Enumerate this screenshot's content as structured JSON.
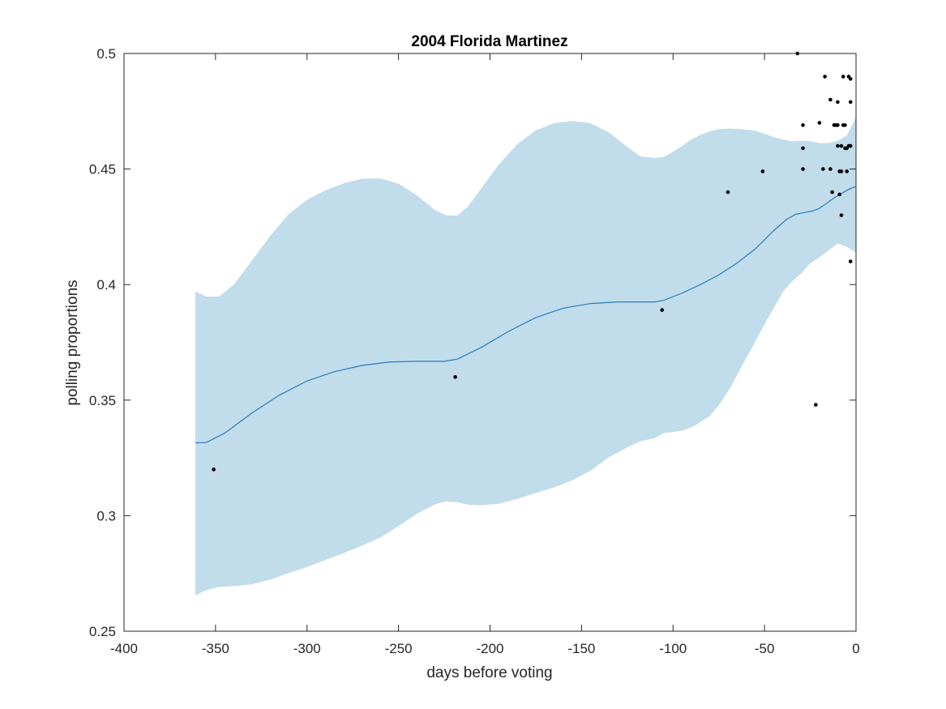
{
  "chart_data": {
    "type": "line",
    "title": "2004 Florida Martinez",
    "xlabel": "days before voting",
    "ylabel": "polling proportions",
    "xlim": [
      -400,
      0
    ],
    "ylim": [
      0.25,
      0.5
    ],
    "xticks": [
      -400,
      -350,
      -300,
      -250,
      -200,
      -150,
      -100,
      -50,
      0
    ],
    "xtick_labels": [
      "-400",
      "-350",
      "-300",
      "-250",
      "-200",
      "-150",
      "-100",
      "-50",
      "0"
    ],
    "yticks": [
      0.25,
      0.3,
      0.35,
      0.4,
      0.45,
      0.5
    ],
    "ytick_labels": [
      "0.25",
      "0.3",
      "0.35",
      "0.4",
      "0.45",
      "0.5"
    ],
    "grid": false,
    "colors": {
      "band": "#c1dcea",
      "line": "#2a7bbf",
      "points": "#000000",
      "axes": "#262626"
    },
    "mean_curve": {
      "x": [
        -361,
        -355,
        -345,
        -330,
        -315,
        -300,
        -285,
        -270,
        -255,
        -240,
        -225,
        -218,
        -205,
        -190,
        -175,
        -160,
        -145,
        -130,
        -120,
        -110,
        -105,
        -95,
        -85,
        -75,
        -65,
        -55,
        -45,
        -38,
        -33,
        -28,
        -24,
        -20,
        -16,
        -12,
        -8,
        -4,
        0
      ],
      "y": [
        0.3315,
        0.3317,
        0.3357,
        0.3445,
        0.3522,
        0.3583,
        0.3623,
        0.365,
        0.3665,
        0.3668,
        0.3668,
        0.3677,
        0.3727,
        0.3797,
        0.3857,
        0.3898,
        0.3918,
        0.3925,
        0.3925,
        0.3925,
        0.3932,
        0.3963,
        0.4,
        0.4042,
        0.4093,
        0.4155,
        0.4233,
        0.4282,
        0.4304,
        0.4312,
        0.4318,
        0.433,
        0.4352,
        0.4375,
        0.4394,
        0.4412,
        0.4425
      ]
    },
    "confidence_band": {
      "x": [
        -361,
        -355,
        -348,
        -340,
        -330,
        -320,
        -310,
        -300,
        -290,
        -280,
        -270,
        -260,
        -250,
        -240,
        -230,
        -224,
        -218,
        -212,
        -205,
        -195,
        -185,
        -175,
        -165,
        -155,
        -145,
        -135,
        -125,
        -118,
        -110,
        -105,
        -100,
        -95,
        -90,
        -85,
        -80,
        -75,
        -70,
        -65,
        -60,
        -55,
        -50,
        -45,
        -40,
        -35,
        -30,
        -25,
        -20,
        -15,
        -10,
        -5,
        0
      ],
      "upper": [
        0.397,
        0.3948,
        0.3948,
        0.4,
        0.4105,
        0.4212,
        0.4305,
        0.4367,
        0.4408,
        0.4438,
        0.4458,
        0.4459,
        0.4437,
        0.4386,
        0.4322,
        0.43,
        0.4298,
        0.4338,
        0.4414,
        0.4522,
        0.4608,
        0.4668,
        0.4698,
        0.4708,
        0.4698,
        0.4658,
        0.4596,
        0.4555,
        0.4548,
        0.4552,
        0.4575,
        0.46,
        0.4628,
        0.4648,
        0.4663,
        0.4672,
        0.4675,
        0.4674,
        0.4671,
        0.4665,
        0.4653,
        0.4638,
        0.4628,
        0.462,
        0.4622,
        0.462,
        0.4612,
        0.4612,
        0.4622,
        0.4645,
        0.4725
      ],
      "lower": [
        0.2655,
        0.2678,
        0.2692,
        0.2695,
        0.2703,
        0.2723,
        0.2752,
        0.2778,
        0.2808,
        0.2838,
        0.287,
        0.2905,
        0.2955,
        0.3008,
        0.3049,
        0.3062,
        0.3058,
        0.3048,
        0.3045,
        0.3052,
        0.3073,
        0.3098,
        0.3122,
        0.3153,
        0.3195,
        0.3253,
        0.3295,
        0.3322,
        0.3335,
        0.3358,
        0.3362,
        0.3368,
        0.3382,
        0.3405,
        0.3432,
        0.3477,
        0.3537,
        0.3608,
        0.3683,
        0.3754,
        0.3828,
        0.3898,
        0.3968,
        0.4014,
        0.4048,
        0.4092,
        0.4118,
        0.4148,
        0.4178,
        0.4163,
        0.4138
      ]
    },
    "points": [
      {
        "x": -351,
        "y": 0.32
      },
      {
        "x": -219,
        "y": 0.36
      },
      {
        "x": -106,
        "y": 0.389
      },
      {
        "x": -70,
        "y": 0.44
      },
      {
        "x": -51,
        "y": 0.449
      },
      {
        "x": -32,
        "y": 0.5
      },
      {
        "x": -29,
        "y": 0.469
      },
      {
        "x": -29,
        "y": 0.459
      },
      {
        "x": -29,
        "y": 0.45
      },
      {
        "x": -22,
        "y": 0.348
      },
      {
        "x": -20,
        "y": 0.47
      },
      {
        "x": -18,
        "y": 0.45
      },
      {
        "x": -17,
        "y": 0.49
      },
      {
        "x": -14,
        "y": 0.48
      },
      {
        "x": -14,
        "y": 0.45
      },
      {
        "x": -13,
        "y": 0.44
      },
      {
        "x": -12,
        "y": 0.469
      },
      {
        "x": -11,
        "y": 0.469
      },
      {
        "x": -10,
        "y": 0.479
      },
      {
        "x": -10,
        "y": 0.469
      },
      {
        "x": -10,
        "y": 0.46
      },
      {
        "x": -9,
        "y": 0.449
      },
      {
        "x": -9,
        "y": 0.439
      },
      {
        "x": -8,
        "y": 0.46
      },
      {
        "x": -8,
        "y": 0.43
      },
      {
        "x": -8,
        "y": 0.449
      },
      {
        "x": -7,
        "y": 0.49
      },
      {
        "x": -7,
        "y": 0.469
      },
      {
        "x": -6,
        "y": 0.469
      },
      {
        "x": -6,
        "y": 0.459
      },
      {
        "x": -5,
        "y": 0.449
      },
      {
        "x": -5,
        "y": 0.459
      },
      {
        "x": -4,
        "y": 0.49
      },
      {
        "x": -4,
        "y": 0.46
      },
      {
        "x": -3,
        "y": 0.479
      },
      {
        "x": -3,
        "y": 0.489
      },
      {
        "x": -3,
        "y": 0.46
      },
      {
        "x": -3,
        "y": 0.41
      }
    ]
  }
}
